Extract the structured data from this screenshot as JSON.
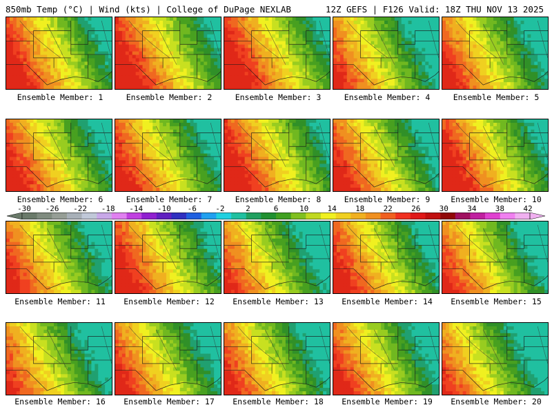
{
  "header": {
    "left": "850mb Temp (°C) | Wind (kts) | College of DuPage NEXLAB",
    "right": "12Z GEFS | F126 Valid: 18Z THU NOV 13 2025"
  },
  "members": [
    {
      "label": "Ensemble Member: 1",
      "warm": 0.55
    },
    {
      "label": "Ensemble Member: 2",
      "warm": 0.6
    },
    {
      "label": "Ensemble Member: 3",
      "warm": 0.62
    },
    {
      "label": "Ensemble Member: 4",
      "warm": 0.4
    },
    {
      "label": "Ensemble Member: 5",
      "warm": 0.45
    },
    {
      "label": "Ensemble Member: 6",
      "warm": 0.52
    },
    {
      "label": "Ensemble Member: 7",
      "warm": 0.5
    },
    {
      "label": "Ensemble Member: 8",
      "warm": 0.6
    },
    {
      "label": "Ensemble Member: 9",
      "warm": 0.48
    },
    {
      "label": "Ensemble Member: 10",
      "warm": 0.58
    },
    {
      "label": "Ensemble Member: 11",
      "warm": 0.45
    },
    {
      "label": "Ensemble Member: 12",
      "warm": 0.55
    },
    {
      "label": "Ensemble Member: 13",
      "warm": 0.38
    },
    {
      "label": "Ensemble Member: 14",
      "warm": 0.5
    },
    {
      "label": "Ensemble Member: 15",
      "warm": 0.42
    },
    {
      "label": "Ensemble Member: 16",
      "warm": 0.38
    },
    {
      "label": "Ensemble Member: 17",
      "warm": 0.45
    },
    {
      "label": "Ensemble Member: 18",
      "warm": 0.42
    },
    {
      "label": "Ensemble Member: 19",
      "warm": 0.46
    },
    {
      "label": "Ensemble Member: 20",
      "warm": 0.35
    }
  ],
  "colorbar": {
    "labels": [
      "-30",
      "-26",
      "-22",
      "-18",
      "-14",
      "-10",
      "-6",
      "-2",
      "2",
      "6",
      "10",
      "14",
      "18",
      "22",
      "26",
      "30",
      "34",
      "38",
      "42"
    ],
    "colors": [
      "#6a7a6a",
      "#808c80",
      "#969e96",
      "#a8b0b8",
      "#c0c8d8",
      "#c8a8e8",
      "#e080f0",
      "#c040e0",
      "#9020d0",
      "#6020c0",
      "#3030c0",
      "#2060e0",
      "#20a0f0",
      "#20d0e0",
      "#20c0a0",
      "#20a060",
      "#209030",
      "#40a020",
      "#80c020",
      "#c0d820",
      "#f0f020",
      "#f0d020",
      "#f0b020",
      "#f09020",
      "#f06020",
      "#f03020",
      "#e01818",
      "#c01010",
      "#900808",
      "#a01060",
      "#c020a0",
      "#e040d0",
      "#f080f0",
      "#f0b0f0"
    ]
  }
}
